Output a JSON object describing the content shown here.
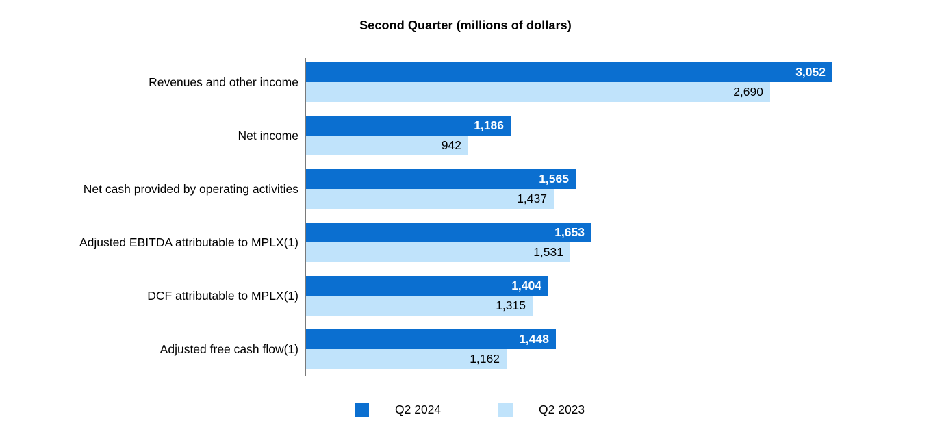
{
  "chart_data": {
    "type": "bar",
    "orientation": "horizontal",
    "title": "Second Quarter (millions of dollars)",
    "categories": [
      "Revenues and other income",
      "Net income",
      "Net cash provided by operating activities",
      "Adjusted EBITDA attributable to MPLX(1)",
      "DCF attributable to MPLX(1)",
      "Adjusted free cash flow(1)"
    ],
    "series": [
      {
        "name": "Q2 2024",
        "color": "#0b6fd0",
        "label_color": "#ffffff",
        "values": [
          3052,
          1186,
          1565,
          1653,
          1404,
          1448
        ]
      },
      {
        "name": "Q2 2023",
        "color": "#c0e3fb",
        "label_color": "#000000",
        "values": [
          2690,
          942,
          1437,
          1531,
          1315,
          1162
        ]
      }
    ],
    "xlim": [
      0,
      3600
    ],
    "gridlines": false,
    "axis_line_color": "#7a7a7a",
    "value_labels": "inside-end",
    "legend": {
      "position": "bottom",
      "items": [
        "Q2 2024",
        "Q2 2023"
      ]
    }
  }
}
